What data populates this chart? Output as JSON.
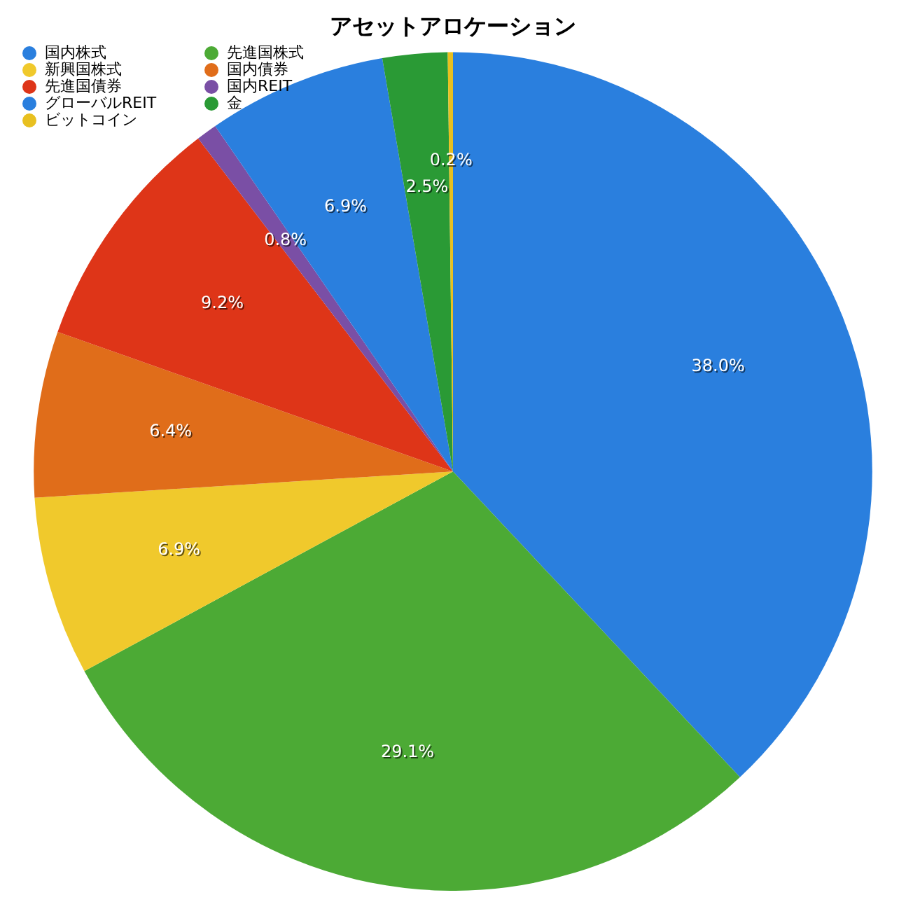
{
  "chart_data": {
    "type": "pie",
    "title": "アセットアロケーション",
    "categories": [
      "国内株式",
      "先進国株式",
      "新興国株式",
      "国内債券",
      "先進国債券",
      "国内REIT",
      "グローバルREIT",
      "金",
      "ビットコイン"
    ],
    "values": [
      38.0,
      29.1,
      6.9,
      6.4,
      9.2,
      0.8,
      6.9,
      2.5,
      0.2
    ],
    "value_labels": [
      "38.0%",
      "29.1%",
      "6.9%",
      "6.4%",
      "9.2%",
      "0.8%",
      "6.9%",
      "2.5%",
      "0.2%"
    ],
    "colors": [
      "#2a7fde",
      "#4caa35",
      "#f0c92c",
      "#e06d1a",
      "#de3518",
      "#7a4fa5",
      "#2a7fde",
      "#2a9a35",
      "#e8c020"
    ],
    "legend": "top left"
  }
}
